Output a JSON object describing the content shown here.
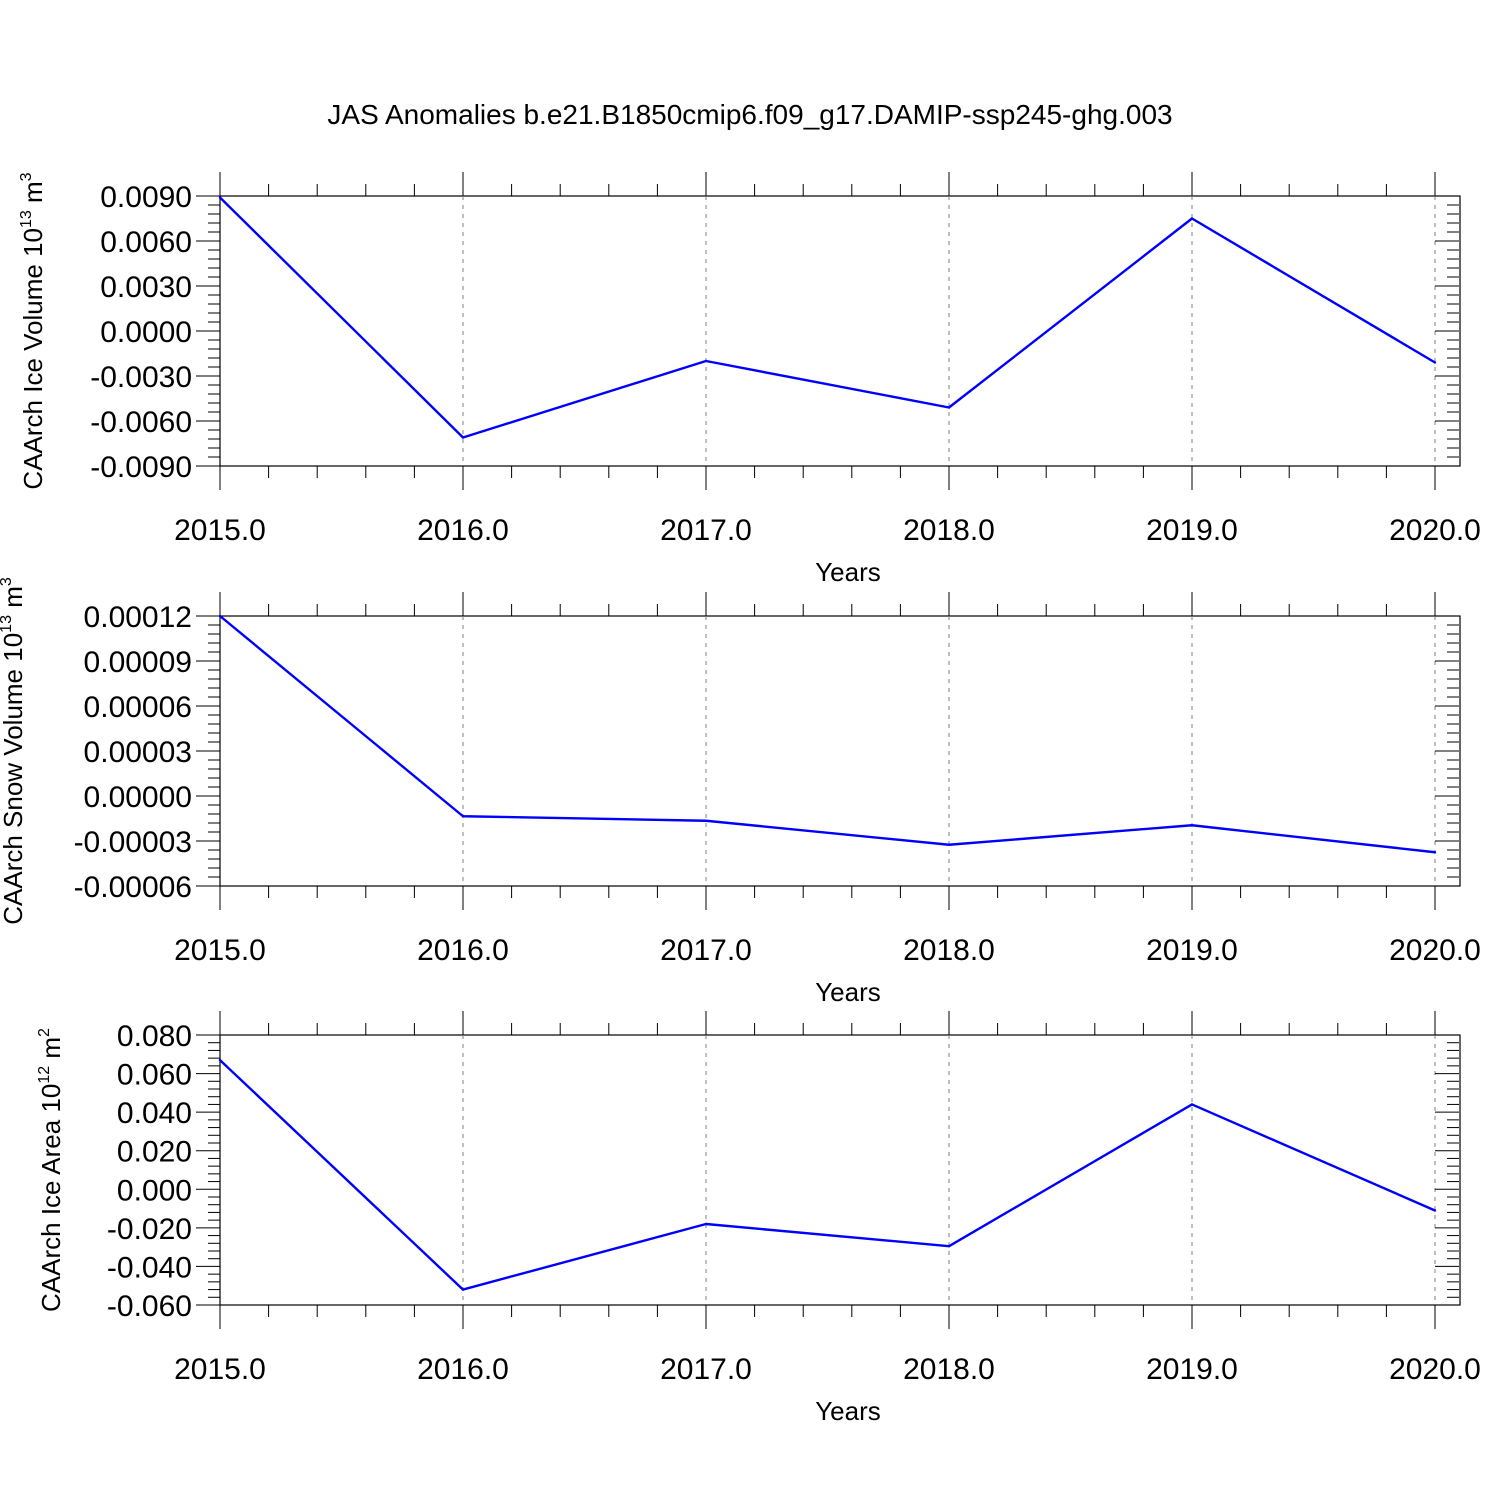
{
  "title": "JAS Anomalies b.e21.B1850cmip6.f09_g17.DAMIP-ssp245-ghg.003",
  "colors": {
    "line": "#0000ff",
    "axis": "#000000",
    "grid": "#808080",
    "background": "#ffffff"
  },
  "chart_data": [
    {
      "type": "line",
      "ylabel": {
        "prefix": "CAArch Ice Volume 10",
        "exp": "13",
        "unit": " m",
        "unit_exp": "3"
      },
      "xlabel": "Years",
      "x": [
        2015,
        2016,
        2017,
        2018,
        2019,
        2020
      ],
      "y": [
        0.0089,
        -0.0071,
        -0.002,
        -0.0051,
        0.0075,
        -0.0021
      ],
      "xlim": [
        2015,
        2020
      ],
      "ylim": [
        -0.009,
        0.009
      ],
      "xticks": [
        "2015.0",
        "2016.0",
        "2017.0",
        "2018.0",
        "2019.0",
        "2020.0"
      ],
      "yticks": [
        {
          "v": 0.009,
          "label": "0.0090"
        },
        {
          "v": 0.006,
          "label": "0.0060"
        },
        {
          "v": 0.003,
          "label": "0.0030"
        },
        {
          "v": 0.0,
          "label": "0.0000"
        },
        {
          "v": -0.003,
          "label": "-0.0030"
        },
        {
          "v": -0.006,
          "label": "-0.0060"
        },
        {
          "v": -0.009,
          "label": "-0.0090"
        }
      ],
      "grid": "vertical dashed at major x ticks"
    },
    {
      "type": "line",
      "ylabel": {
        "prefix": "CAArch Snow Volume 10",
        "exp": "13",
        "unit": " m",
        "unit_exp": "3"
      },
      "xlabel": "Years",
      "x": [
        2015,
        2016,
        2017,
        2018,
        2019,
        2020
      ],
      "y": [
        0.00012,
        -1.35e-05,
        -1.65e-05,
        -3.25e-05,
        -1.95e-05,
        -3.75e-05
      ],
      "xlim": [
        2015,
        2020
      ],
      "ylim": [
        -6e-05,
        0.00012
      ],
      "xticks": [
        "2015.0",
        "2016.0",
        "2017.0",
        "2018.0",
        "2019.0",
        "2020.0"
      ],
      "yticks": [
        {
          "v": 0.00012,
          "label": "0.00012"
        },
        {
          "v": 9e-05,
          "label": "0.00009"
        },
        {
          "v": 6e-05,
          "label": "0.00006"
        },
        {
          "v": 3e-05,
          "label": "0.00003"
        },
        {
          "v": 0.0,
          "label": "0.00000"
        },
        {
          "v": -3e-05,
          "label": "-0.00003"
        },
        {
          "v": -6e-05,
          "label": "-0.00006"
        }
      ],
      "grid": "vertical dashed at major x ticks"
    },
    {
      "type": "line",
      "ylabel": {
        "prefix": "CAArch Ice Area 10",
        "exp": "12",
        "unit": " m",
        "unit_exp": "2"
      },
      "xlabel": "Years",
      "x": [
        2015,
        2016,
        2017,
        2018,
        2019,
        2020
      ],
      "y": [
        0.067,
        -0.052,
        -0.018,
        -0.0295,
        0.044,
        -0.011
      ],
      "xlim": [
        2015,
        2020
      ],
      "ylim": [
        -0.06,
        0.08
      ],
      "xticks": [
        "2015.0",
        "2016.0",
        "2017.0",
        "2018.0",
        "2019.0",
        "2020.0"
      ],
      "yticks": [
        {
          "v": 0.08,
          "label": "0.080"
        },
        {
          "v": 0.06,
          "label": "0.060"
        },
        {
          "v": 0.04,
          "label": "0.040"
        },
        {
          "v": 0.02,
          "label": "0.020"
        },
        {
          "v": 0.0,
          "label": "0.000"
        },
        {
          "v": -0.02,
          "label": "-0.020"
        },
        {
          "v": -0.04,
          "label": "-0.040"
        },
        {
          "v": -0.06,
          "label": "-0.060"
        }
      ],
      "grid": "vertical dashed at major x ticks"
    }
  ]
}
